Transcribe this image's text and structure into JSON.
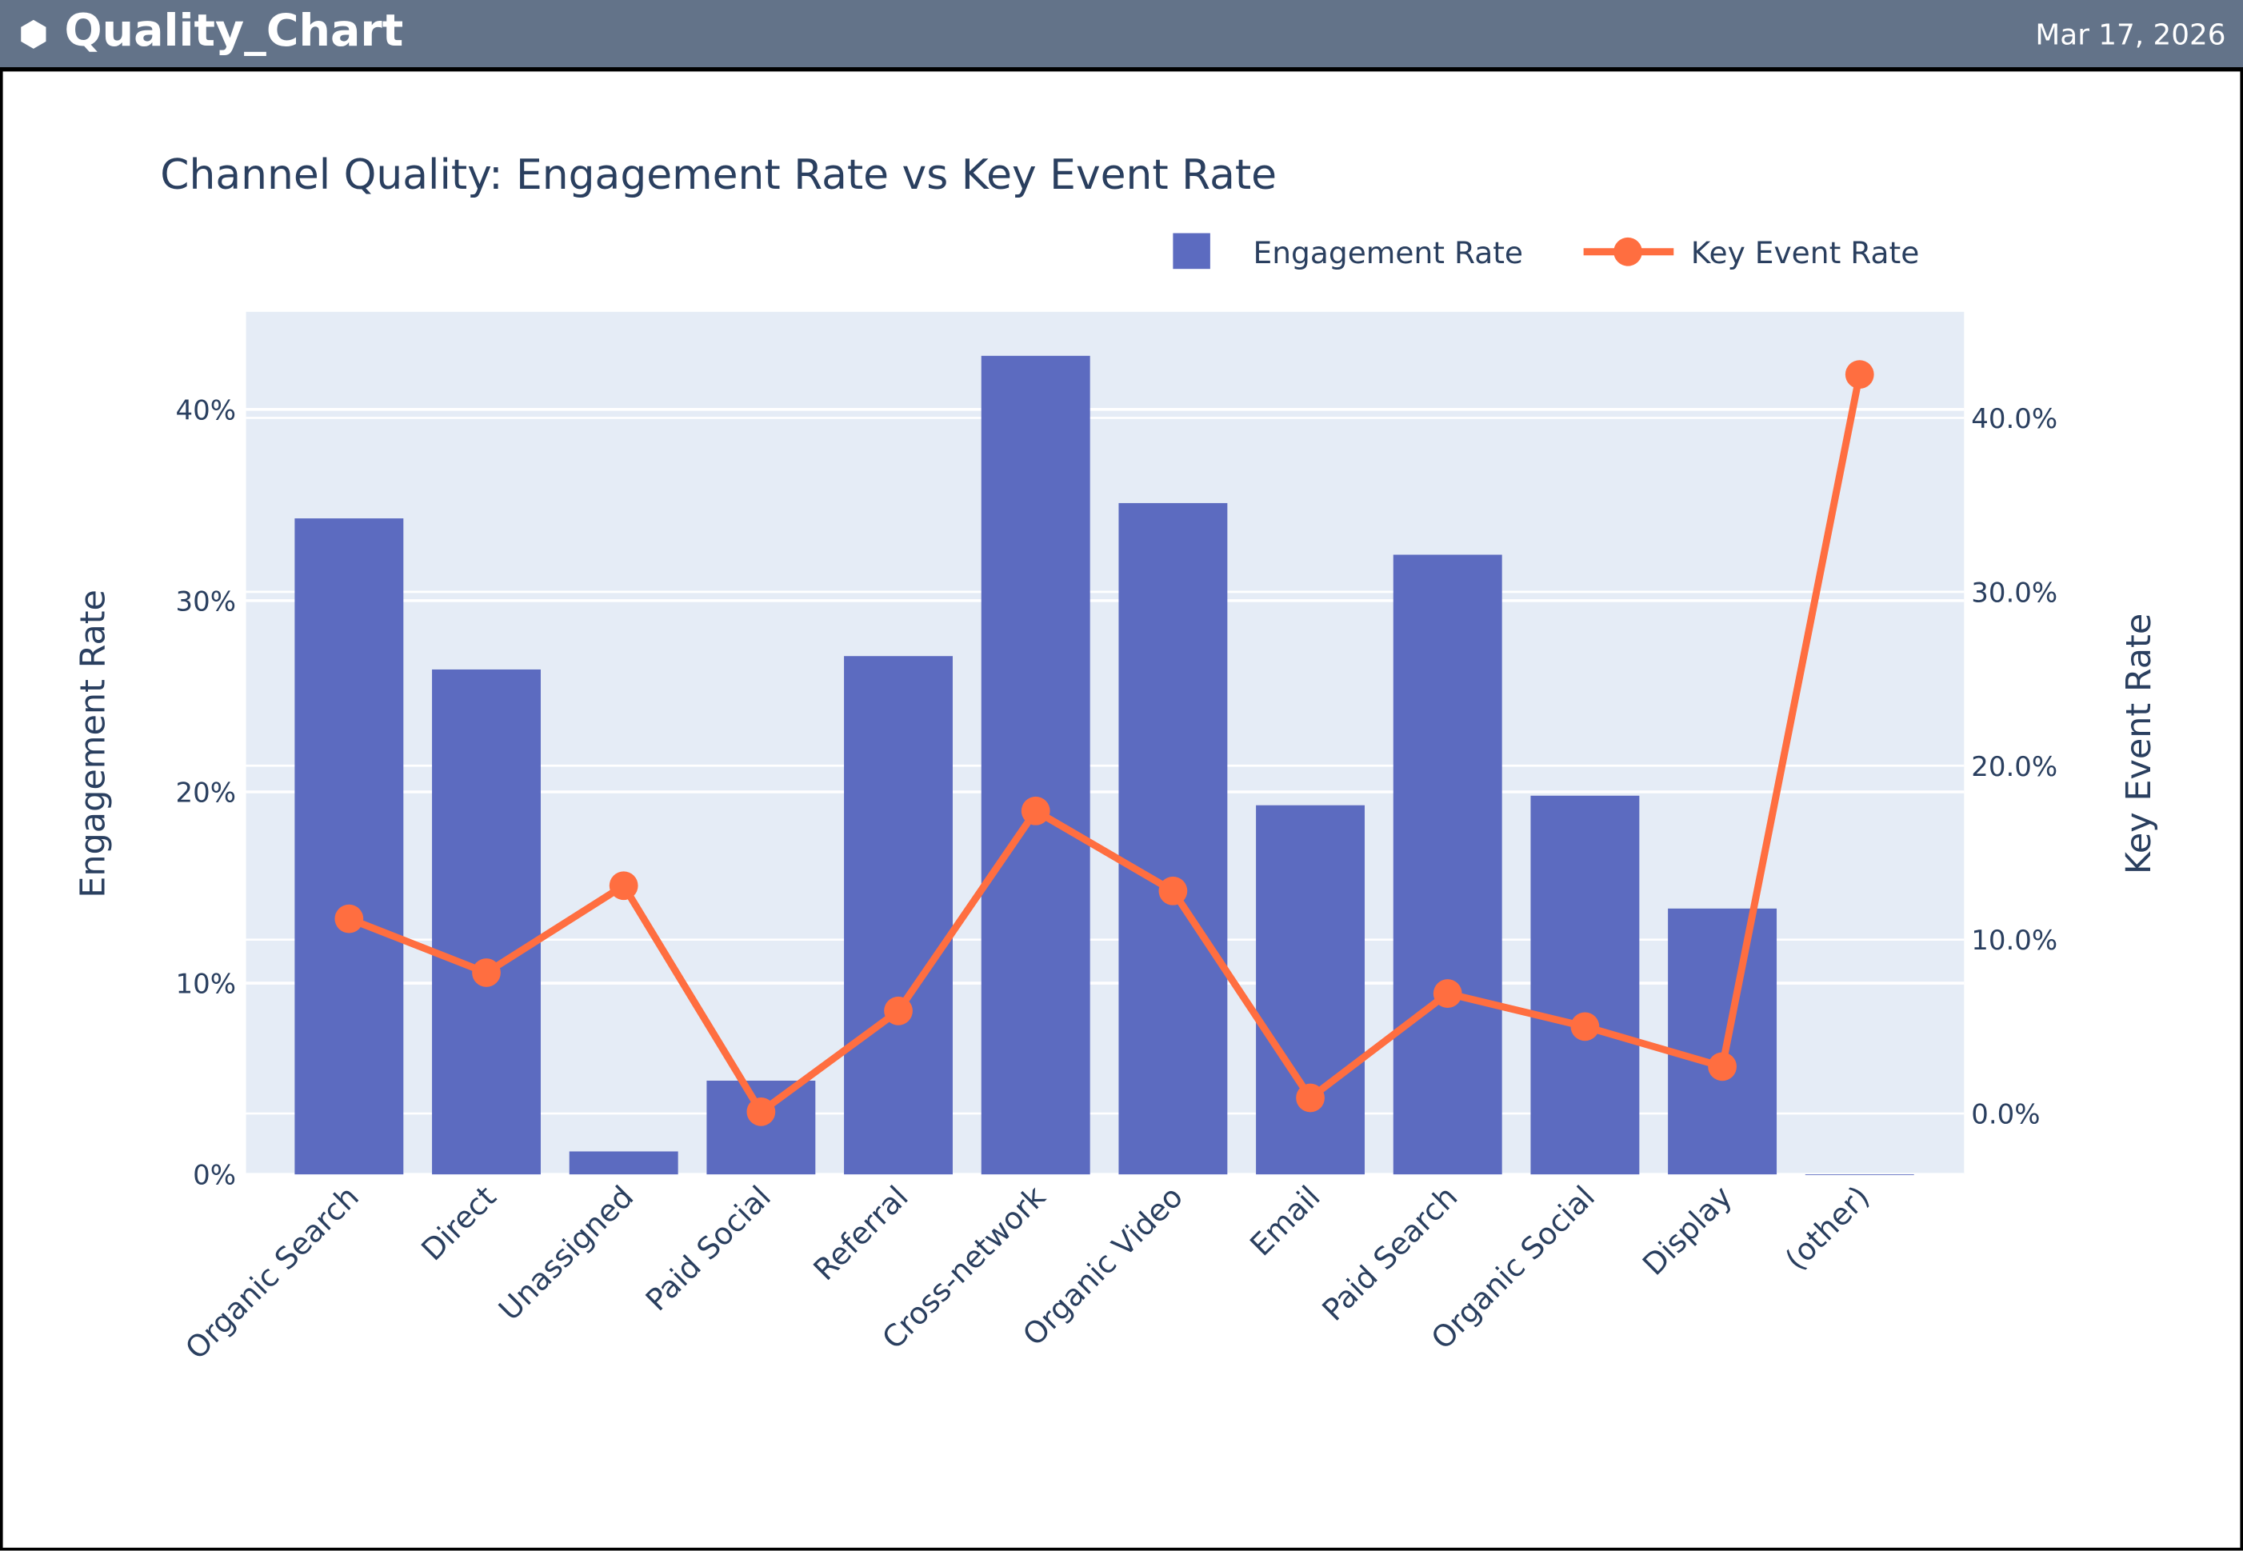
{
  "header": {
    "title": "Quality_Chart",
    "date": "Mar 17, 2026",
    "icon": "python-icon"
  },
  "chart_data": {
    "type": "bar+line",
    "title": "Channel Quality: Engagement Rate vs Key Event Rate",
    "categories": [
      "Organic Search",
      "Direct",
      "Unassigned",
      "Paid Social",
      "Referral",
      "Cross-network",
      "Organic Video",
      "Email",
      "Paid Search",
      "Organic Social",
      "Display",
      "(other)"
    ],
    "series": [
      {
        "name": "Engagement Rate",
        "type": "bar",
        "axis": "left",
        "color": "#5c6bc0",
        "values": [
          34.3,
          26.4,
          1.2,
          4.9,
          27.1,
          42.8,
          35.1,
          19.3,
          32.4,
          19.8,
          13.9,
          0.0
        ]
      },
      {
        "name": "Key Event Rate",
        "type": "line",
        "axis": "right",
        "color": "#ff6e40",
        "values": [
          11.2,
          8.1,
          13.1,
          0.1,
          5.9,
          17.4,
          12.8,
          0.9,
          6.9,
          5.0,
          2.7,
          42.5
        ]
      }
    ],
    "ylabel": "Engagement Rate",
    "y2label": "Key Event Rate",
    "ylim": [
      0,
      45.1
    ],
    "y2lim": [
      -3.5,
      46.1
    ],
    "yticks": [
      "0%",
      "10%",
      "20%",
      "30%",
      "40%"
    ],
    "y2ticks": [
      "0.0%",
      "10.0%",
      "20.0%",
      "30.0%",
      "40.0%"
    ],
    "grid": true,
    "legend": "top-right",
    "plot_bg": "#e5ecf6"
  }
}
